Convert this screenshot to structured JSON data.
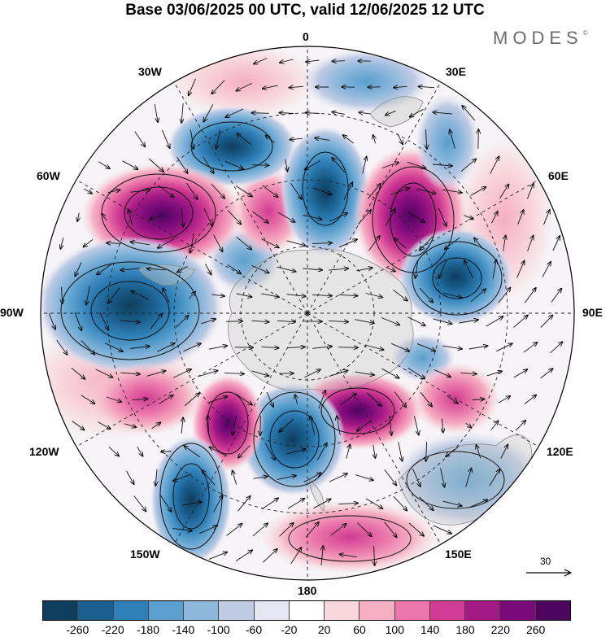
{
  "title": "Base 03/06/2025 00 UTC, valid 12/06/2025 12 UTC",
  "brand": "MODES",
  "brand_mark": "©",
  "longitude_labels": {
    "top": "0",
    "top_right": "30E",
    "right_upper": "60E",
    "right": "90E",
    "right_lower": "120E",
    "bottom_right": "150E",
    "bottom": "180",
    "bottom_left": "150W",
    "left_lower": "120W",
    "left": "90W",
    "left_upper": "60W",
    "top_left": "30W"
  },
  "reference_vector_label": "30",
  "colorbar": {
    "colors": [
      "#0f3d5e",
      "#1a5f8e",
      "#2f7fb8",
      "#5a9fcd",
      "#8db8dc",
      "#bfcbe4",
      "#e6e6f2",
      "#ffffff",
      "#f8d6dc",
      "#f5aec4",
      "#ea76aa",
      "#d03c93",
      "#a41a85",
      "#7a0a79",
      "#4e065e"
    ],
    "tick_labels": [
      "-260",
      "-220",
      "-180",
      "-140",
      "-100",
      "-60",
      "-20",
      "20",
      "60",
      "100",
      "140",
      "180",
      "220",
      "260"
    ]
  },
  "anomaly_centers": [
    {
      "sign": "negative",
      "strength": 0.9,
      "name": "low-60W-high-lat"
    },
    {
      "sign": "positive",
      "strength": 1.0,
      "name": "high-50W"
    },
    {
      "sign": "negative",
      "strength": 0.8,
      "name": "low-0-mid"
    },
    {
      "sign": "positive",
      "strength": 1.0,
      "name": "high-40E"
    },
    {
      "sign": "negative",
      "strength": 0.9,
      "name": "low-75E"
    },
    {
      "sign": "negative",
      "strength": 1.0,
      "name": "low-90W"
    },
    {
      "sign": "positive",
      "strength": 0.7,
      "name": "high-150E"
    },
    {
      "sign": "negative",
      "strength": 0.9,
      "name": "low-180"
    },
    {
      "sign": "positive",
      "strength": 0.8,
      "name": "high-150W"
    },
    {
      "sign": "negative",
      "strength": 0.9,
      "name": "low-140W"
    },
    {
      "sign": "negative",
      "strength": 0.5,
      "name": "low-130E"
    }
  ]
}
